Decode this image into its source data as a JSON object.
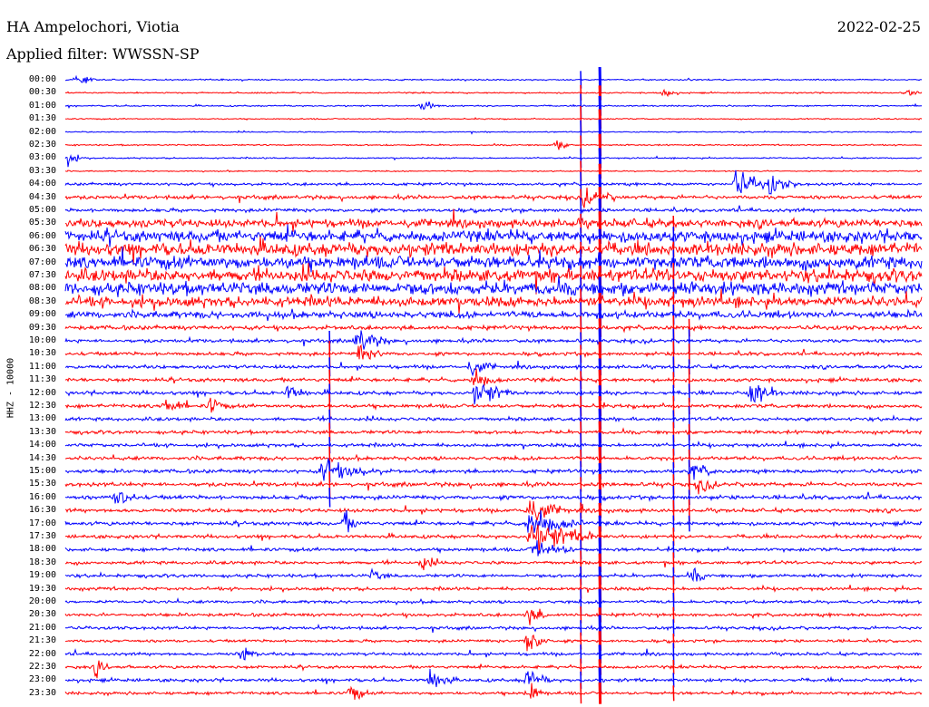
{
  "header": {
    "station": "HA Ampelochori, Viotia",
    "filter": "Applied filter: WWSSN-SP",
    "date": "2022-02-25"
  },
  "channel_label": "HHZ - 10000",
  "colors": {
    "trace_a": "#0000ff",
    "trace_b": "#ff0000",
    "background": "#ffffff"
  },
  "chart_data": {
    "type": "line",
    "title": "HA Ampelochori, Viotia",
    "subtitle": "Applied filter: WWSSN-SP",
    "ylabel": "HHZ - 10000",
    "row_interval_minutes": 30,
    "trace_colors": [
      "#0000ff",
      "#ff0000"
    ],
    "rows": [
      "00:00",
      "00:30",
      "01:00",
      "01:30",
      "02:00",
      "02:30",
      "03:00",
      "03:30",
      "04:00",
      "04:30",
      "05:00",
      "05:30",
      "06:00",
      "06:30",
      "07:00",
      "07:30",
      "08:00",
      "08:30",
      "09:00",
      "09:30",
      "10:00",
      "10:30",
      "11:00",
      "11:30",
      "12:00",
      "12:30",
      "13:00",
      "13:30",
      "14:00",
      "14:30",
      "15:00",
      "15:30",
      "16:00",
      "16:30",
      "17:00",
      "17:30",
      "18:00",
      "18:30",
      "19:00",
      "19:30",
      "20:00",
      "20:30",
      "21:00",
      "21:30",
      "22:00",
      "22:30",
      "23:00",
      "23:30"
    ],
    "noise_level": [
      0.6,
      0.6,
      0.6,
      0.5,
      0.5,
      0.6,
      0.6,
      0.5,
      1.2,
      1.6,
      1.5,
      3.5,
      5.0,
      5.5,
      5.5,
      5.5,
      5.5,
      4.5,
      3.0,
      1.8,
      1.5,
      1.5,
      1.5,
      1.6,
      1.6,
      1.6,
      1.5,
      1.5,
      1.5,
      1.6,
      1.6,
      1.7,
      1.7,
      1.6,
      1.6,
      1.5,
      1.5,
      1.4,
      1.4,
      1.4,
      1.3,
      1.4,
      1.3,
      1.2,
      1.3,
      1.3,
      1.4,
      1.3
    ],
    "events": [
      {
        "row": 0,
        "minute": 0.4,
        "amp": 6,
        "dur": 0.8
      },
      {
        "row": 1,
        "minute": 21.0,
        "amp": 5,
        "dur": 0.6
      },
      {
        "row": 1,
        "minute": 29.5,
        "amp": 4,
        "dur": 0.5
      },
      {
        "row": 2,
        "minute": 12.5,
        "amp": 6,
        "dur": 0.8
      },
      {
        "row": 5,
        "minute": 17.2,
        "amp": 5,
        "dur": 0.6
      },
      {
        "row": 6,
        "minute": 0.1,
        "amp": 6,
        "dur": 0.6
      },
      {
        "row": 8,
        "minute": 23.5,
        "amp": 14,
        "dur": 1.2
      },
      {
        "row": 8,
        "minute": 24.7,
        "amp": 10,
        "dur": 1.0
      },
      {
        "row": 9,
        "minute": 18.2,
        "amp": 9,
        "dur": 1.2
      },
      {
        "row": 20,
        "minute": 10.2,
        "amp": 12,
        "dur": 1.2
      },
      {
        "row": 21,
        "minute": 10.3,
        "amp": 8,
        "dur": 1.0
      },
      {
        "row": 22,
        "minute": 14.2,
        "amp": 8,
        "dur": 1.0
      },
      {
        "row": 23,
        "minute": 14.3,
        "amp": 10,
        "dur": 1.0
      },
      {
        "row": 24,
        "minute": 14.4,
        "amp": 14,
        "dur": 1.2
      },
      {
        "row": 24,
        "minute": 7.8,
        "amp": 8,
        "dur": 0.8
      },
      {
        "row": 24,
        "minute": 24.0,
        "amp": 14,
        "dur": 1.0
      },
      {
        "row": 25,
        "minute": 3.5,
        "amp": 10,
        "dur": 0.8
      },
      {
        "row": 25,
        "minute": 5.1,
        "amp": 9,
        "dur": 0.6
      },
      {
        "row": 30,
        "minute": 9.0,
        "amp": 10,
        "dur": 2.2
      },
      {
        "row": 30,
        "minute": 22.0,
        "amp": 8,
        "dur": 0.8
      },
      {
        "row": 31,
        "minute": 22.2,
        "amp": 7,
        "dur": 0.8
      },
      {
        "row": 32,
        "minute": 1.8,
        "amp": 12,
        "dur": 0.8
      },
      {
        "row": 33,
        "minute": 16.2,
        "amp": 14,
        "dur": 1.5
      },
      {
        "row": 34,
        "minute": 16.2,
        "amp": 16,
        "dur": 2.0
      },
      {
        "row": 34,
        "minute": 9.8,
        "amp": 10,
        "dur": 0.6
      },
      {
        "row": 35,
        "minute": 16.3,
        "amp": 16,
        "dur": 2.5
      },
      {
        "row": 36,
        "minute": 16.4,
        "amp": 10,
        "dur": 1.5
      },
      {
        "row": 37,
        "minute": 12.5,
        "amp": 8,
        "dur": 0.6
      },
      {
        "row": 38,
        "minute": 10.8,
        "amp": 6,
        "dur": 0.6
      },
      {
        "row": 38,
        "minute": 22.0,
        "amp": 7,
        "dur": 0.6
      },
      {
        "row": 41,
        "minute": 16.2,
        "amp": 10,
        "dur": 0.8
      },
      {
        "row": 43,
        "minute": 16.2,
        "amp": 14,
        "dur": 0.8
      },
      {
        "row": 44,
        "minute": 6.2,
        "amp": 8,
        "dur": 0.6
      },
      {
        "row": 45,
        "minute": 1.1,
        "amp": 8,
        "dur": 0.6
      },
      {
        "row": 46,
        "minute": 12.8,
        "amp": 12,
        "dur": 0.8
      },
      {
        "row": 46,
        "minute": 16.2,
        "amp": 12,
        "dur": 0.8
      },
      {
        "row": 47,
        "minute": 10.0,
        "amp": 10,
        "dur": 0.6
      },
      {
        "row": 47,
        "minute": 16.2,
        "amp": 14,
        "dur": 0.6
      }
    ],
    "spikes": [
      {
        "minute": 18.72,
        "row_from": 0,
        "row_to": 47
      },
      {
        "minute": 18.05,
        "row_from": 0,
        "row_to": 47
      },
      {
        "minute": 21.3,
        "row_from": 11,
        "row_to": 47
      },
      {
        "minute": 9.25,
        "row_from": 20,
        "row_to": 32
      },
      {
        "minute": 21.85,
        "row_from": 19,
        "row_to": 34
      }
    ]
  }
}
